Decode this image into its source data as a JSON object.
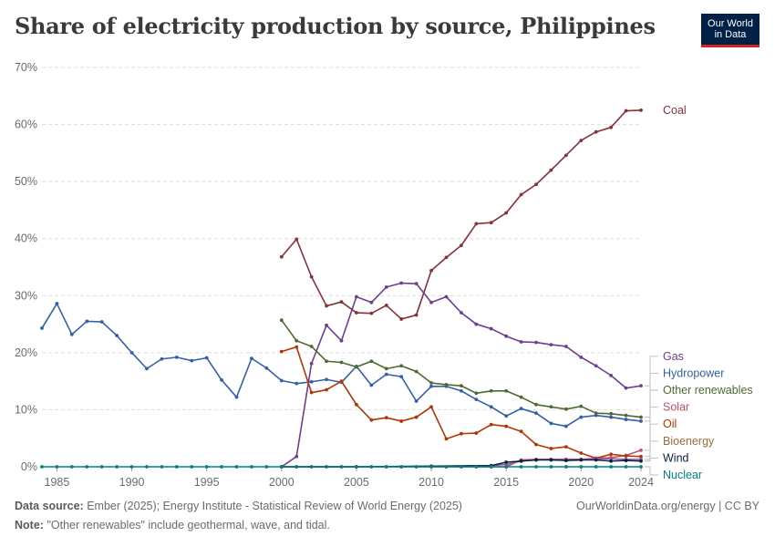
{
  "title": "Share of electricity production by source, Philippines",
  "logo": {
    "line1": "Our World",
    "line2": "in Data"
  },
  "footer": {
    "source_label": "Data source:",
    "source_text": "Ember (2025); Energy Institute - Statistical Review of World Energy (2025)",
    "note_label": "Note:",
    "note_text": "\"Other renewables\" include geothermal, wave, and tidal.",
    "url": "OurWorldinData.org/energy | CC BY"
  },
  "chart_data": {
    "type": "line",
    "title": "Share of electricity production by source, Philippines",
    "xlabel": "",
    "ylabel": "",
    "xlim": [
      1984,
      2024
    ],
    "ylim": [
      0,
      70
    ],
    "x_ticks": [
      1985,
      1990,
      1995,
      2000,
      2005,
      2010,
      2015,
      2020,
      2024
    ],
    "y_ticks": [
      0,
      10,
      20,
      30,
      40,
      50,
      60,
      70
    ],
    "y_tick_labels": [
      "0%",
      "10%",
      "20%",
      "30%",
      "40%",
      "50%",
      "60%",
      "70%"
    ],
    "grid": "horizontal dashed",
    "legend": "right, line-end labels",
    "series": [
      {
        "name": "Coal",
        "color": "#883039",
        "x": [
          2000,
          2001,
          2002,
          2003,
          2004,
          2005,
          2006,
          2007,
          2008,
          2009,
          2010,
          2011,
          2012,
          2013,
          2014,
          2015,
          2016,
          2017,
          2018,
          2019,
          2020,
          2021,
          2022,
          2023,
          2024
        ],
        "values": [
          36.8,
          39.9,
          33.3,
          28.2,
          28.9,
          27.0,
          26.9,
          28.3,
          25.9,
          26.6,
          34.4,
          36.7,
          38.8,
          42.6,
          42.8,
          44.5,
          47.7,
          49.5,
          52.0,
          54.6,
          57.2,
          58.7,
          59.5,
          62.4,
          62.5
        ]
      },
      {
        "name": "Gas",
        "color": "#6d3e91",
        "x": [
          2000,
          2001,
          2002,
          2003,
          2004,
          2005,
          2006,
          2007,
          2008,
          2009,
          2010,
          2011,
          2012,
          2013,
          2014,
          2015,
          2016,
          2017,
          2018,
          2019,
          2020,
          2021,
          2022,
          2023,
          2024
        ],
        "values": [
          0.0,
          1.8,
          18.1,
          24.8,
          22.1,
          29.8,
          28.8,
          31.5,
          32.2,
          32.1,
          28.8,
          29.8,
          27.0,
          25.0,
          24.2,
          22.9,
          21.9,
          21.8,
          21.4,
          21.1,
          19.2,
          17.7,
          16.0,
          13.8,
          14.2
        ]
      },
      {
        "name": "Hydropower",
        "color": "#3360a9",
        "x": [
          1984,
          1985,
          1986,
          1987,
          1988,
          1989,
          1990,
          1991,
          1992,
          1993,
          1994,
          1995,
          1996,
          1997,
          1998,
          1999,
          2000,
          2001,
          2002,
          2003,
          2004,
          2005,
          2006,
          2007,
          2008,
          2009,
          2010,
          2011,
          2012,
          2013,
          2014,
          2015,
          2016,
          2017,
          2018,
          2019,
          2020,
          2021,
          2022,
          2023,
          2024
        ],
        "values": [
          24.3,
          28.6,
          23.2,
          25.5,
          25.4,
          23.0,
          20.0,
          17.2,
          18.9,
          19.2,
          18.6,
          19.1,
          15.2,
          12.2,
          19.0,
          17.3,
          15.1,
          14.6,
          14.9,
          15.3,
          14.8,
          17.6,
          14.3,
          16.2,
          15.8,
          11.5,
          14.1,
          14.1,
          13.3,
          11.8,
          10.5,
          8.9,
          10.2,
          9.4,
          7.6,
          7.1,
          8.7,
          9.0,
          8.7,
          8.3,
          8.0
        ]
      },
      {
        "name": "Other renewables",
        "color": "#4c6a31",
        "x": [
          2000,
          2001,
          2002,
          2003,
          2004,
          2005,
          2006,
          2007,
          2008,
          2009,
          2010,
          2011,
          2012,
          2013,
          2014,
          2015,
          2016,
          2017,
          2018,
          2019,
          2020,
          2021,
          2022,
          2023,
          2024
        ],
        "values": [
          25.7,
          22.1,
          21.1,
          18.5,
          18.3,
          17.5,
          18.5,
          17.2,
          17.7,
          16.7,
          14.7,
          14.4,
          14.2,
          12.9,
          13.3,
          13.3,
          12.2,
          10.9,
          10.5,
          10.1,
          10.6,
          9.4,
          9.3,
          9.0,
          8.7
        ]
      },
      {
        "name": "Solar",
        "color": "#c15065",
        "x": [
          2000,
          2001,
          2002,
          2003,
          2004,
          2005,
          2006,
          2007,
          2008,
          2009,
          2010,
          2011,
          2012,
          2013,
          2014,
          2015,
          2016,
          2017,
          2018,
          2019,
          2020,
          2021,
          2022,
          2023,
          2024
        ],
        "values": [
          0,
          0,
          0,
          0,
          0,
          0,
          0,
          0,
          0,
          0,
          0,
          0,
          0,
          0,
          0,
          0,
          1.2,
          1.3,
          1.3,
          1.3,
          1.3,
          1.5,
          1.6,
          2.0,
          2.9
        ]
      },
      {
        "name": "Oil",
        "color": "#b13507",
        "x": [
          2000,
          2001,
          2002,
          2003,
          2004,
          2005,
          2006,
          2007,
          2008,
          2009,
          2010,
          2011,
          2012,
          2013,
          2014,
          2015,
          2016,
          2017,
          2018,
          2019,
          2020,
          2021,
          2022,
          2023,
          2024
        ],
        "values": [
          20.2,
          21.0,
          13.0,
          13.5,
          15.0,
          10.9,
          8.2,
          8.6,
          8.0,
          8.7,
          10.5,
          4.9,
          5.8,
          5.9,
          7.4,
          7.1,
          6.2,
          3.9,
          3.2,
          3.5,
          2.4,
          1.5,
          2.2,
          1.9,
          1.8
        ]
      },
      {
        "name": "Bioenergy",
        "color": "#a2559c",
        "x": [
          2000,
          2005,
          2010,
          2014,
          2015,
          2016,
          2017,
          2018,
          2019,
          2020,
          2021,
          2022,
          2023,
          2024
        ],
        "values": [
          0.0,
          0.0,
          0.1,
          0.2,
          0.4,
          1.0,
          1.2,
          1.3,
          1.3,
          1.3,
          1.4,
          1.4,
          1.3,
          1.3
        ]
      },
      {
        "name": "Wind",
        "color": "#0a1f44",
        "x": [
          2000,
          2005,
          2010,
          2014,
          2015,
          2016,
          2017,
          2018,
          2019,
          2020,
          2021,
          2022,
          2023,
          2024
        ],
        "values": [
          0.0,
          0.0,
          0.1,
          0.2,
          0.8,
          1.0,
          1.2,
          1.2,
          1.1,
          1.2,
          1.2,
          1.0,
          1.1,
          1.0
        ]
      },
      {
        "name": "Nuclear",
        "color": "#00847e",
        "x": [
          1984,
          1985,
          1986,
          1987,
          1988,
          1989,
          1990,
          1991,
          1992,
          1993,
          1994,
          1995,
          1996,
          1997,
          1998,
          1999,
          2000,
          2001,
          2002,
          2003,
          2004,
          2005,
          2006,
          2007,
          2008,
          2009,
          2010,
          2011,
          2012,
          2013,
          2014,
          2015,
          2016,
          2017,
          2018,
          2019,
          2020,
          2021,
          2022,
          2023,
          2024
        ],
        "values": [
          0,
          0,
          0,
          0,
          0,
          0,
          0,
          0,
          0,
          0,
          0,
          0,
          0,
          0,
          0,
          0,
          0,
          0,
          0,
          0,
          0,
          0,
          0,
          0,
          0,
          0,
          0,
          0,
          0,
          0,
          0,
          0,
          0,
          0,
          0,
          0,
          0,
          0,
          0,
          0,
          0
        ]
      }
    ],
    "label_colors": {
      "Coal": "#883039",
      "Gas": "#6d3e91",
      "Hydropower": "#3360a9",
      "Other renewables": "#4c6a31",
      "Solar": "#c15065",
      "Oil": "#b13507",
      "Bioenergy": "#996d39",
      "Wind": "#0a1f44",
      "Nuclear": "#00847e"
    }
  }
}
